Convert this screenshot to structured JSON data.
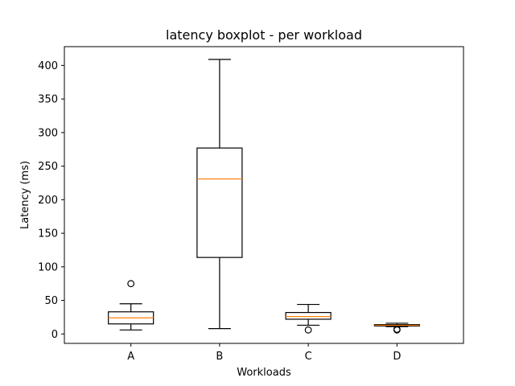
{
  "chart_data": {
    "type": "boxplot",
    "title": "latency boxplot - per workload",
    "xlabel": "Workloads",
    "ylabel": "Latency (ms)",
    "ylim": [
      -14,
      428
    ],
    "yticks": [
      0,
      50,
      100,
      150,
      200,
      250,
      300,
      350,
      400
    ],
    "grid": false,
    "categories": [
      "A",
      "B",
      "C",
      "D"
    ],
    "boxes": [
      {
        "name": "A",
        "whisker_low": 6,
        "q1": 15,
        "median": 24,
        "q3": 33,
        "whisker_high": 45,
        "outliers": [
          75
        ]
      },
      {
        "name": "B",
        "whisker_low": 8,
        "q1": 114,
        "median": 231,
        "q3": 277,
        "whisker_high": 409,
        "outliers": []
      },
      {
        "name": "C",
        "whisker_low": 13,
        "q1": 22,
        "median": 26,
        "q3": 32,
        "whisker_high": 44,
        "outliers": [
          6
        ]
      },
      {
        "name": "D",
        "whisker_low": 11,
        "q1": 12,
        "median": 13,
        "q3": 14,
        "whisker_high": 16,
        "outliers": [
          6,
          7
        ]
      }
    ],
    "colors": {
      "box": "#000000",
      "median": "#ff7f0e",
      "outlier": "#000000"
    }
  }
}
